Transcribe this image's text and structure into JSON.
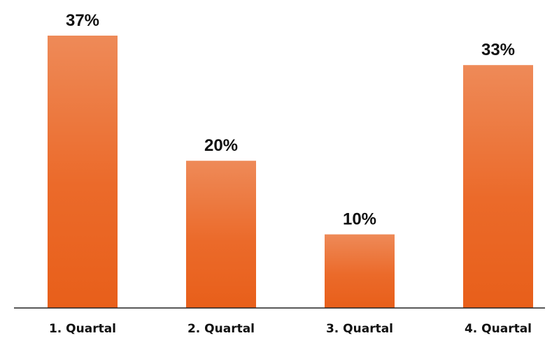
{
  "chart_data": {
    "type": "bar",
    "categories": [
      "1. Quartal",
      "2. Quartal",
      "3. Quartal",
      "4. Quartal"
    ],
    "values": [
      37,
      20,
      10,
      33
    ],
    "value_labels": [
      "37%",
      "20%",
      "10%",
      "33%"
    ],
    "unit": "%",
    "ylim": [
      0,
      37
    ],
    "grid": false,
    "legend": "none",
    "title": "",
    "xlabel": "",
    "ylabel": "",
    "colors": {
      "bar_top": "#EE8A58",
      "bar_bottom": "#E85F1A",
      "axis": "#222222",
      "text": "#111111"
    }
  }
}
